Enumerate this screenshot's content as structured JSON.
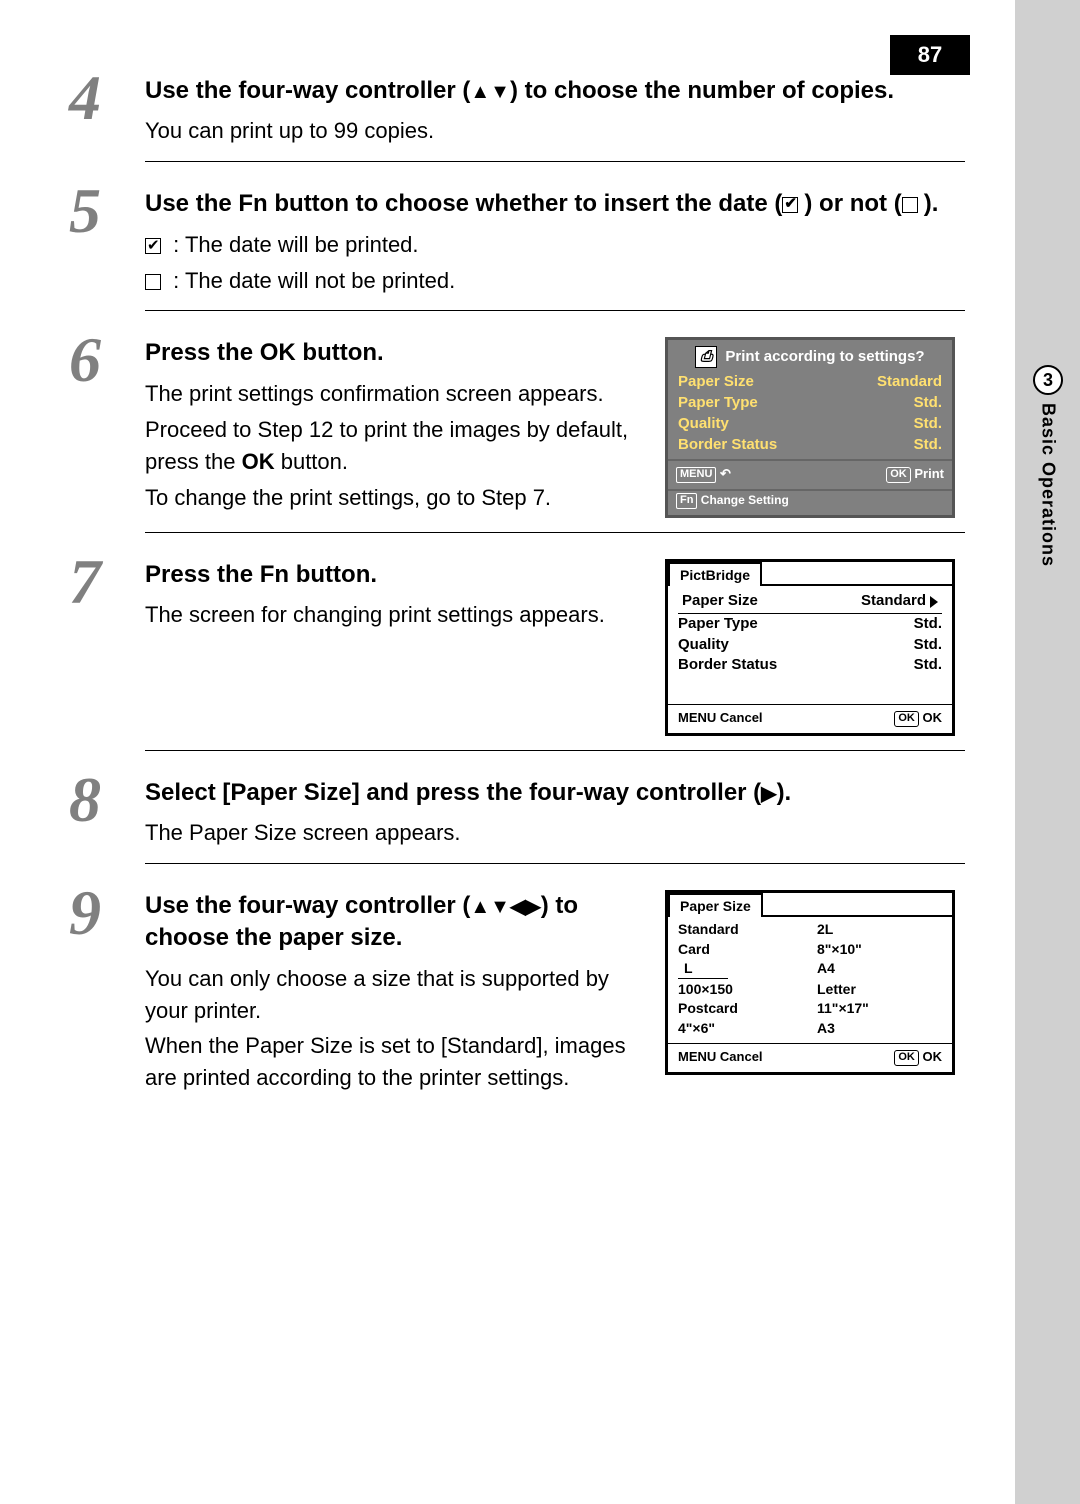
{
  "page_number": "87",
  "side_tab": {
    "number": "3",
    "label": "Basic Operations"
  },
  "step4": {
    "num": "4",
    "head_a": "Use the four-way controller (",
    "head_arrows": "▲▼",
    "head_b": ") to choose the number of copies.",
    "body": "You can print up to 99 copies."
  },
  "step5": {
    "num": "5",
    "head_a": "Use the ",
    "head_fn": "Fn",
    "head_b": " button to choose whether to insert the date (",
    "head_c": ") or not (",
    "head_d": ").",
    "checked": "The date will be printed.",
    "unchecked": "The date will not be printed."
  },
  "step6": {
    "num": "6",
    "head_a": "Press the ",
    "head_ok": "OK",
    "head_b": " button.",
    "p1": "The print settings confirmation screen appears.",
    "p2a": "Proceed to Step 12 to print the images by default, press the ",
    "p2ok": "OK",
    "p2b": " button.",
    "p3": "To change the print settings, go to Step 7.",
    "lcd": {
      "title": "Print according to settings?",
      "rows": [
        {
          "l": "Paper Size",
          "v": "Standard"
        },
        {
          "l": "Paper Type",
          "v": "Std."
        },
        {
          "l": "Quality",
          "v": "Std."
        },
        {
          "l": "Border Status",
          "v": "Std."
        }
      ],
      "menu": "MENU",
      "back": "↶",
      "ok": "OK",
      "print": "Print",
      "fn": "Fn",
      "change": "Change Setting"
    }
  },
  "step7": {
    "num": "7",
    "head_a": "Press the ",
    "head_fn": "Fn",
    "head_b": " button.",
    "p1": "The screen for changing print settings appears.",
    "lcd": {
      "tab": "PictBridge",
      "sel_l": "Paper Size",
      "sel_v": "Standard",
      "rows": [
        {
          "l": "Paper Type",
          "v": "Std."
        },
        {
          "l": "Quality",
          "v": "Std."
        },
        {
          "l": "Border Status",
          "v": "Std."
        }
      ],
      "menu": "MENU",
      "cancel": "Cancel",
      "ok": "OK",
      "okv": "OK"
    }
  },
  "step8": {
    "num": "8",
    "head_a": "Select [Paper Size] and press the four-way controller (",
    "head_arrow": "▶",
    "head_b": ").",
    "p1": "The Paper Size screen appears."
  },
  "step9": {
    "num": "9",
    "head_a": "Use the four-way controller (",
    "head_arrows": "▲▼◀▶",
    "head_b": ") to choose the paper size.",
    "p1": "You can only choose a size that is supported by your printer.",
    "p2": "When the Paper Size is set to [Standard], images are printed according to the printer settings.",
    "lcd": {
      "tab": "Paper Size",
      "selected": "L",
      "col1": [
        "Standard",
        "Card",
        "L",
        "100×150",
        "Postcard",
        "4\"×6\""
      ],
      "col2": [
        "2L",
        "8\"×10\"",
        "A4",
        "Letter",
        "11\"×17\"",
        "A3"
      ],
      "menu": "MENU",
      "cancel": "Cancel",
      "ok": "OK",
      "okv": "OK"
    }
  }
}
